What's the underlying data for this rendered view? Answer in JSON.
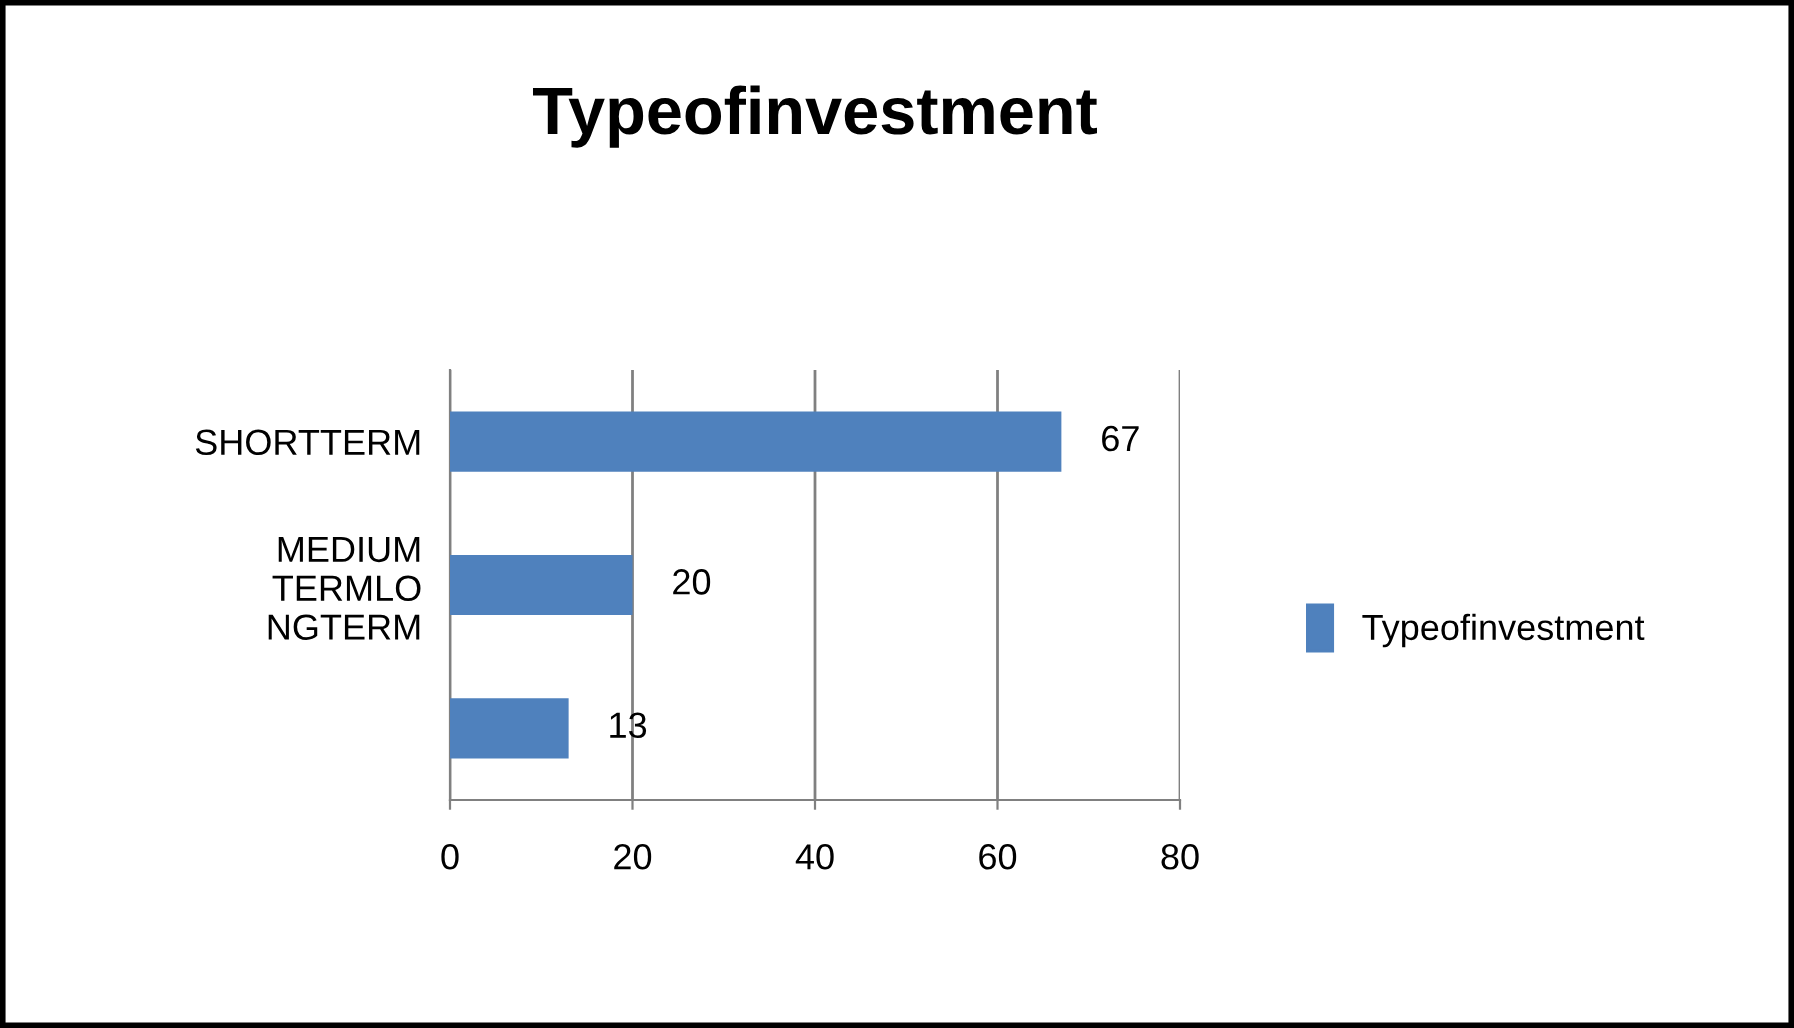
{
  "chart_data": {
    "type": "bar",
    "orientation": "horizontal",
    "title": "Typeofinvestment",
    "categories": [
      "SHORTTERM",
      "MEDIUM\nTERMLO\nNGTERM",
      null
    ],
    "series": [
      {
        "name": "Typeofinvestment",
        "color": "#4f81bd",
        "values": [
          67,
          20,
          13
        ]
      }
    ],
    "xlim": [
      0,
      80
    ],
    "xticks": [
      0,
      20,
      40,
      60,
      80
    ],
    "grid": "x",
    "legend": "right",
    "data_labels": true
  }
}
